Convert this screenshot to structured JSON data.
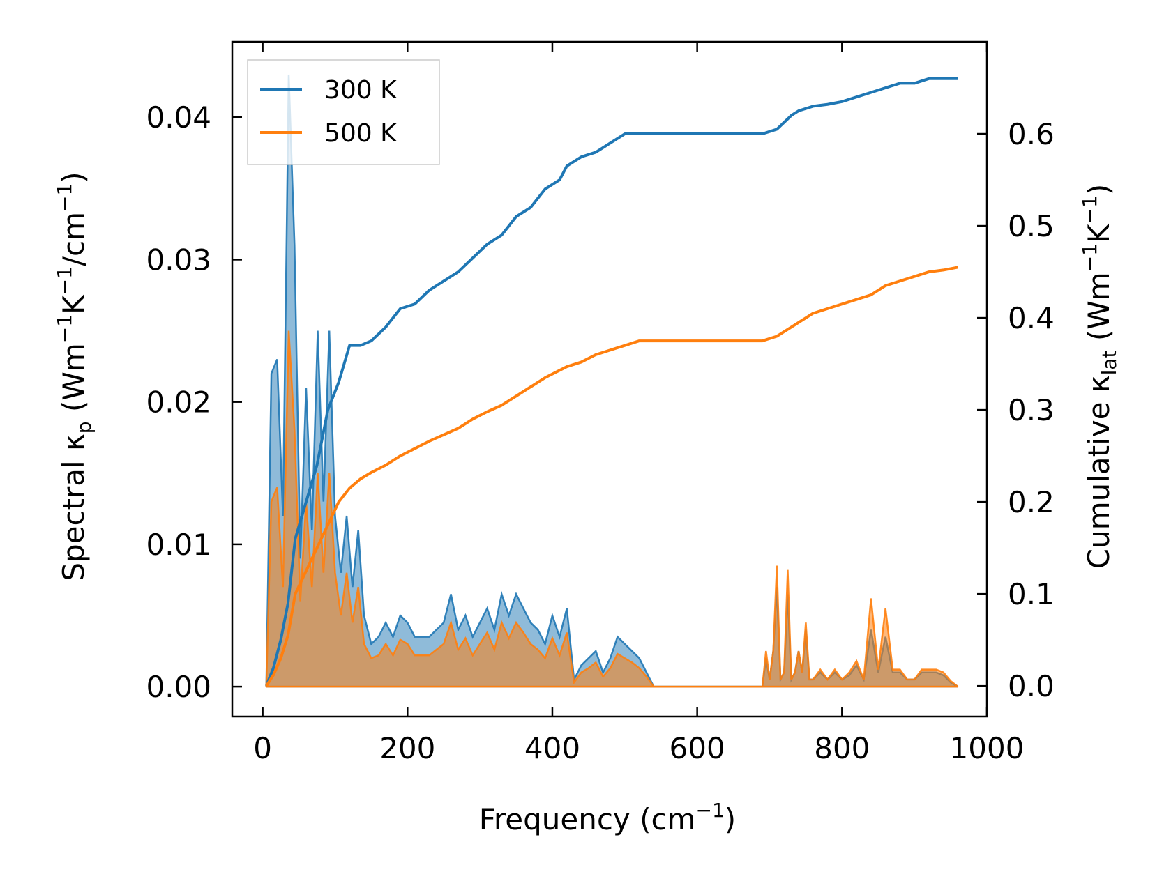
{
  "chart_data": {
    "type": "line",
    "xlabel": "Frequency (cm",
    "xlabel_sup": "−1",
    "xlabel_end": ")",
    "ylabel_left": {
      "prefix": "Spectral κ",
      "sub": "p",
      "mid1": " (Wm",
      "sup1": "−1",
      "mid2": "K",
      "sup2": "−1",
      "mid3": "/cm",
      "sup3": "−1",
      "end": ")"
    },
    "ylabel_right": {
      "prefix": "Cumulative κ",
      "sub": "lat",
      "mid1": " (Wm",
      "sup1": "−1",
      "mid2": "K",
      "sup2": "−1",
      "end": ")"
    },
    "xlim": [
      -42,
      1000
    ],
    "ylim_left": [
      -0.0021,
      0.0453
    ],
    "ylim_right": [
      -0.0332,
      0.7
    ],
    "xticks": [
      0,
      200,
      400,
      600,
      800,
      1000
    ],
    "xtick_labels": [
      "0",
      "200",
      "400",
      "600",
      "800",
      "1000"
    ],
    "yticks_left": [
      0.0,
      0.01,
      0.02,
      0.03,
      0.04
    ],
    "ytick_labels_left": [
      "0.00",
      "0.01",
      "0.02",
      "0.03",
      "0.04"
    ],
    "yticks_right": [
      0.0,
      0.1,
      0.2,
      0.3,
      0.4,
      0.5,
      0.6
    ],
    "ytick_labels_right": [
      "0.0",
      "0.1",
      "0.2",
      "0.3",
      "0.4",
      "0.5",
      "0.6"
    ],
    "legend": {
      "location": "upper-left",
      "entries": [
        "300 K",
        "500 K"
      ]
    },
    "series": [
      {
        "name": "300 K",
        "color": "#1f77b4",
        "spectral_x": [
          5,
          12,
          20,
          28,
          36,
          44,
          52,
          60,
          68,
          76,
          84,
          92,
          100,
          108,
          116,
          124,
          132,
          140,
          150,
          160,
          170,
          180,
          190,
          200,
          210,
          220,
          230,
          240,
          250,
          260,
          270,
          280,
          290,
          300,
          310,
          320,
          330,
          340,
          350,
          360,
          370,
          380,
          390,
          400,
          410,
          420,
          430,
          440,
          450,
          460,
          470,
          480,
          490,
          500,
          510,
          520,
          530,
          540,
          550,
          600,
          650,
          690,
          695,
          700,
          705,
          710,
          715,
          720,
          725,
          730,
          735,
          740,
          745,
          750,
          755,
          760,
          770,
          780,
          790,
          800,
          810,
          820,
          830,
          840,
          850,
          860,
          870,
          880,
          890,
          900,
          910,
          920,
          930,
          940,
          950,
          960
        ],
        "spectral_y": [
          0.0,
          0.022,
          0.023,
          0.012,
          0.043,
          0.031,
          0.009,
          0.021,
          0.011,
          0.025,
          0.013,
          0.025,
          0.012,
          0.008,
          0.012,
          0.007,
          0.011,
          0.005,
          0.003,
          0.0035,
          0.0045,
          0.0035,
          0.005,
          0.0045,
          0.0035,
          0.0035,
          0.0035,
          0.004,
          0.0045,
          0.0065,
          0.004,
          0.005,
          0.0035,
          0.0045,
          0.0055,
          0.004,
          0.0065,
          0.005,
          0.0065,
          0.0055,
          0.0045,
          0.004,
          0.003,
          0.005,
          0.0035,
          0.0055,
          0.0005,
          0.0015,
          0.002,
          0.0025,
          0.001,
          0.002,
          0.0035,
          0.003,
          0.0025,
          0.002,
          0.001,
          0.0,
          0.0,
          0.0,
          0.0,
          0.0,
          0.002,
          0.0005,
          0.0025,
          0.007,
          0.0005,
          0.001,
          0.0065,
          0.0005,
          0.001,
          0.0025,
          0.001,
          0.004,
          0.0005,
          0.0005,
          0.001,
          0.0005,
          0.001,
          0.0005,
          0.0008,
          0.0015,
          0.0005,
          0.004,
          0.001,
          0.0035,
          0.001,
          0.001,
          0.0005,
          0.0005,
          0.001,
          0.001,
          0.001,
          0.0008,
          0.0003,
          0.0
        ],
        "spectral_band_y": [
          0.0,
          0.022,
          0.023,
          0.012,
          0.043,
          0.031,
          0.009,
          0.021,
          0.011,
          0.025,
          0.013,
          0.025,
          0.012,
          0.008,
          0.012,
          0.007,
          0.011,
          0.005,
          0.003,
          0.0035,
          0.0045,
          0.0035,
          0.005,
          0.0045,
          0.0035,
          0.0035,
          0.0035,
          0.004,
          0.0045,
          0.0065,
          0.004,
          0.005,
          0.0035,
          0.0045,
          0.0055,
          0.004,
          0.0065,
          0.005,
          0.0065,
          0.0055,
          0.0045,
          0.004,
          0.003,
          0.005,
          0.0035,
          0.0055,
          0.0005,
          0.0015,
          0.002,
          0.0025,
          0.001,
          0.002,
          0.0035,
          0.003,
          0.0025,
          0.002,
          0.001,
          0.0,
          0.0,
          0.0,
          0.0,
          0.0,
          0.002,
          0.0005,
          0.0025,
          0.007,
          0.0005,
          0.001,
          0.0065,
          0.0005,
          0.001,
          0.0025,
          0.001,
          0.004,
          0.0005,
          0.0005,
          0.001,
          0.0005,
          0.001,
          0.0005,
          0.0008,
          0.0015,
          0.0005,
          0.004,
          0.001,
          0.0035,
          0.001,
          0.001,
          0.0005,
          0.0005,
          0.001,
          0.001,
          0.001,
          0.0008,
          0.0003,
          0.0
        ],
        "cumulative_x": [
          5,
          15,
          25,
          35,
          45,
          60,
          75,
          90,
          105,
          120,
          135,
          150,
          170,
          190,
          210,
          230,
          250,
          270,
          290,
          310,
          330,
          350,
          370,
          390,
          410,
          420,
          440,
          460,
          480,
          500,
          520,
          540,
          600,
          650,
          690,
          710,
          730,
          740,
          760,
          780,
          800,
          820,
          840,
          860,
          880,
          900,
          920,
          940,
          960
        ],
        "cumulative_y": [
          0.0,
          0.02,
          0.05,
          0.09,
          0.16,
          0.2,
          0.24,
          0.3,
          0.33,
          0.37,
          0.37,
          0.375,
          0.39,
          0.41,
          0.415,
          0.43,
          0.44,
          0.45,
          0.465,
          0.48,
          0.49,
          0.51,
          0.52,
          0.54,
          0.55,
          0.565,
          0.575,
          0.58,
          0.59,
          0.6,
          0.6,
          0.6,
          0.6,
          0.6,
          0.6,
          0.605,
          0.62,
          0.625,
          0.63,
          0.632,
          0.635,
          0.64,
          0.645,
          0.65,
          0.655,
          0.655,
          0.66,
          0.66,
          0.66
        ]
      },
      {
        "name": "500 K",
        "color": "#ff7f0e",
        "spectral_x": [
          5,
          12,
          20,
          28,
          36,
          44,
          52,
          60,
          68,
          76,
          84,
          92,
          100,
          108,
          116,
          124,
          132,
          140,
          150,
          160,
          170,
          180,
          190,
          200,
          210,
          220,
          230,
          240,
          250,
          260,
          270,
          280,
          290,
          300,
          310,
          320,
          330,
          340,
          350,
          360,
          370,
          380,
          390,
          400,
          410,
          420,
          430,
          440,
          450,
          460,
          470,
          480,
          490,
          500,
          510,
          520,
          530,
          540,
          550,
          600,
          650,
          690,
          695,
          700,
          705,
          710,
          715,
          720,
          725,
          730,
          735,
          740,
          745,
          750,
          755,
          760,
          770,
          780,
          790,
          800,
          810,
          820,
          830,
          840,
          850,
          860,
          870,
          880,
          890,
          900,
          910,
          920,
          930,
          940,
          950,
          960
        ],
        "spectral_y": [
          0.0,
          0.013,
          0.014,
          0.007,
          0.025,
          0.018,
          0.006,
          0.013,
          0.007,
          0.015,
          0.008,
          0.015,
          0.008,
          0.005,
          0.008,
          0.0045,
          0.007,
          0.003,
          0.002,
          0.0022,
          0.003,
          0.0022,
          0.0033,
          0.003,
          0.0022,
          0.0022,
          0.0022,
          0.0026,
          0.003,
          0.0045,
          0.0026,
          0.0034,
          0.0022,
          0.003,
          0.0038,
          0.0026,
          0.0045,
          0.0034,
          0.0045,
          0.0038,
          0.003,
          0.0026,
          0.002,
          0.0034,
          0.0022,
          0.0038,
          0.0003,
          0.001,
          0.0013,
          0.0017,
          0.0007,
          0.0013,
          0.0023,
          0.002,
          0.0017,
          0.0013,
          0.0007,
          0.0,
          0.0,
          0.0,
          0.0,
          0.0,
          0.0025,
          0.0005,
          0.0025,
          0.0085,
          0.0005,
          0.001,
          0.0082,
          0.0005,
          0.001,
          0.0025,
          0.001,
          0.0045,
          0.0005,
          0.0005,
          0.0012,
          0.0005,
          0.0012,
          0.0005,
          0.001,
          0.0018,
          0.0005,
          0.0062,
          0.0012,
          0.0055,
          0.0012,
          0.0012,
          0.0005,
          0.0005,
          0.0012,
          0.0012,
          0.0012,
          0.001,
          0.0004,
          0.0
        ],
        "spectral_band_y": [
          0.0,
          0.013,
          0.014,
          0.007,
          0.025,
          0.018,
          0.006,
          0.013,
          0.007,
          0.015,
          0.008,
          0.015,
          0.008,
          0.005,
          0.008,
          0.0045,
          0.007,
          0.003,
          0.002,
          0.0022,
          0.003,
          0.0022,
          0.0033,
          0.003,
          0.0022,
          0.0022,
          0.0022,
          0.0026,
          0.003,
          0.0045,
          0.0026,
          0.0034,
          0.0022,
          0.003,
          0.0038,
          0.0026,
          0.0045,
          0.0034,
          0.0045,
          0.0038,
          0.003,
          0.0026,
          0.002,
          0.0034,
          0.0022,
          0.0038,
          0.0003,
          0.001,
          0.0013,
          0.0017,
          0.0007,
          0.0013,
          0.0023,
          0.002,
          0.0017,
          0.0013,
          0.0007,
          0.0,
          0.0,
          0.0,
          0.0,
          0.0,
          0.0025,
          0.0005,
          0.0025,
          0.0085,
          0.0005,
          0.001,
          0.0082,
          0.0005,
          0.001,
          0.0025,
          0.001,
          0.0045,
          0.0005,
          0.0005,
          0.0012,
          0.0005,
          0.0012,
          0.0005,
          0.001,
          0.0018,
          0.0005,
          0.0062,
          0.0012,
          0.0055,
          0.0012,
          0.0012,
          0.0005,
          0.0005,
          0.0012,
          0.0012,
          0.0012,
          0.001,
          0.0004,
          0.0
        ],
        "cumulative_x": [
          5,
          15,
          25,
          35,
          45,
          60,
          75,
          90,
          105,
          120,
          135,
          150,
          170,
          190,
          210,
          230,
          250,
          270,
          290,
          310,
          330,
          350,
          370,
          390,
          410,
          420,
          440,
          460,
          480,
          500,
          520,
          540,
          600,
          650,
          690,
          710,
          730,
          740,
          760,
          780,
          800,
          820,
          840,
          860,
          880,
          900,
          920,
          940,
          960
        ],
        "cumulative_y": [
          0.0,
          0.012,
          0.03,
          0.055,
          0.1,
          0.125,
          0.15,
          0.175,
          0.2,
          0.215,
          0.225,
          0.232,
          0.24,
          0.25,
          0.258,
          0.266,
          0.273,
          0.28,
          0.29,
          0.298,
          0.305,
          0.315,
          0.325,
          0.335,
          0.343,
          0.347,
          0.352,
          0.36,
          0.365,
          0.37,
          0.375,
          0.375,
          0.375,
          0.375,
          0.375,
          0.38,
          0.39,
          0.395,
          0.405,
          0.41,
          0.415,
          0.42,
          0.425,
          0.435,
          0.44,
          0.445,
          0.45,
          0.452,
          0.455
        ]
      }
    ]
  }
}
